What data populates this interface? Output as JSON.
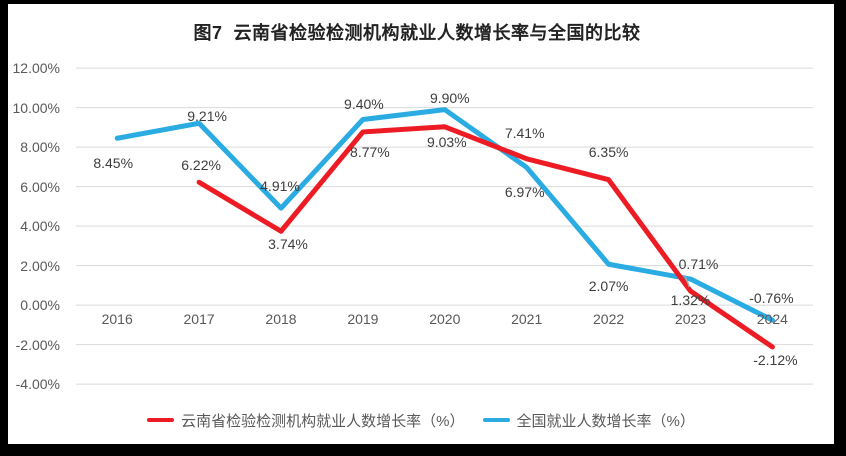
{
  "chart_data": {
    "type": "line",
    "title": "图7  云南省检验检测机构就业人数增长率与全国的比较",
    "categories": [
      "2016",
      "2017",
      "2018",
      "2019",
      "2020",
      "2021",
      "2022",
      "2023",
      "2024"
    ],
    "y_ticks": [
      "12.00%",
      "10.00%",
      "8.00%",
      "6.00%",
      "4.00%",
      "2.00%",
      "0.00%",
      "-2.00%",
      "-4.00%"
    ],
    "ylim": [
      -4,
      12
    ],
    "tick_step": 2,
    "grid": true,
    "legend_position": "bottom",
    "colors": {
      "yunnan": "#ed1c24",
      "national": "#2aabe2",
      "gridline": "#d9d9d9",
      "axis_text": "#595959",
      "label_text": "#3d3d3d",
      "leader": "#a8a8a8",
      "frame": "#000000"
    },
    "series": [
      {
        "name": "云南省检验检测机构就业人数增长率（%）",
        "color": "#ed1c24",
        "values": [
          null,
          6.22,
          3.74,
          8.77,
          9.03,
          7.41,
          6.35,
          0.71,
          -2.12
        ],
        "labels": [
          null,
          "6.22%",
          "3.74%",
          "8.77%",
          "9.03%",
          "7.41%",
          "6.35%",
          "0.71%",
          "-2.12%"
        ],
        "label_offsets": [
          null,
          [
            2,
            -16
          ],
          [
            7,
            14
          ],
          [
            7,
            21
          ],
          [
            2,
            16
          ],
          [
            -2,
            -25
          ],
          [
            0,
            -27
          ],
          [
            8,
            -26
          ],
          [
            3,
            14
          ]
        ]
      },
      {
        "name": "全国就业人数增长率（%）",
        "color": "#2aabe2",
        "values": [
          8.45,
          9.21,
          4.91,
          9.4,
          9.9,
          6.97,
          2.07,
          1.32,
          -0.76
        ],
        "labels": [
          "8.45%",
          "9.21%",
          "4.91%",
          "9.40%",
          "9.90%",
          "6.97%",
          "2.07%",
          "1.32%",
          "-0.76%"
        ],
        "label_offsets": [
          [
            -4,
            26
          ],
          [
            8,
            -6
          ],
          [
            -1,
            -21
          ],
          [
            1,
            -14
          ],
          [
            5,
            -11
          ],
          [
            -2,
            26
          ],
          [
            0,
            23
          ],
          [
            0,
            22
          ],
          [
            -1,
            -21
          ]
        ]
      }
    ],
    "leader_line": {
      "series_index": 0,
      "point_index": 7
    }
  }
}
